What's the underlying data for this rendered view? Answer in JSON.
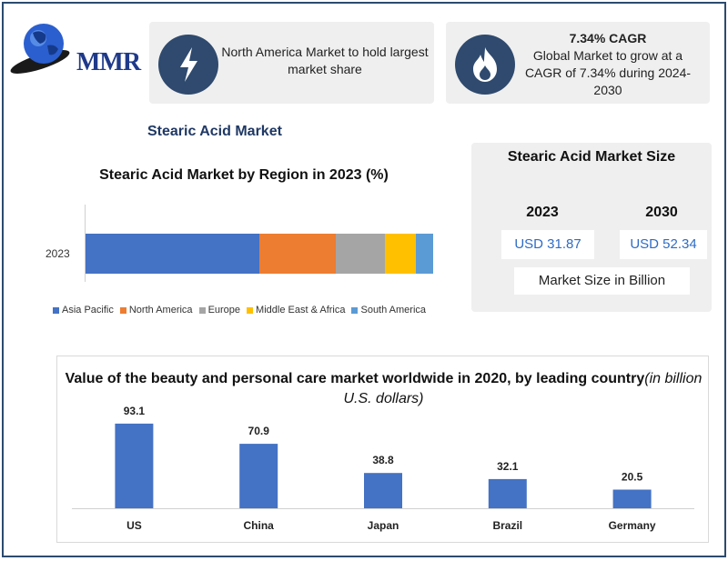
{
  "logo": {
    "text": "MMR",
    "icon": "globe-icon"
  },
  "cards": {
    "regional": {
      "icon": "lightning-icon",
      "text": "North America Market to hold largest market share"
    },
    "cagr": {
      "icon": "flame-icon",
      "title": "7.34% CAGR",
      "text": "Global Market to grow at a CAGR of 7.34% during 2024-2030"
    }
  },
  "section_title": "Stearic Acid Market",
  "market_size": {
    "title": "Stearic Acid Market Size",
    "years": [
      "2023",
      "2030"
    ],
    "values": [
      "USD 31.87",
      "USD 52.34"
    ],
    "note": "Market Size in Billion"
  },
  "colors": {
    "bar_blue": "#4472c4",
    "asia_pacific": "#4472c4",
    "north_america": "#ed7d31",
    "europe": "#a5a5a5",
    "middle_east_africa": "#ffc000",
    "south_america": "#5b9bd5",
    "icon_circle": "#2f4a6e"
  },
  "chart_data": [
    {
      "type": "bar",
      "stacked": true,
      "orientation": "horizontal",
      "title": "Stearic Acid  Market by Region in 2023 (%)",
      "categories": [
        "2023"
      ],
      "series": [
        {
          "name": "Asia Pacific",
          "values": [
            50
          ]
        },
        {
          "name": "North America",
          "values": [
            22
          ]
        },
        {
          "name": "Europe",
          "values": [
            14
          ]
        },
        {
          "name": "Middle East & Africa",
          "values": [
            9
          ]
        },
        {
          "name": "South America",
          "values": [
            5
          ]
        }
      ],
      "xlim": [
        0,
        100
      ],
      "legend": "bottom",
      "grid": false
    },
    {
      "type": "bar",
      "title": "Value of the beauty and personal care market worldwide in 2020, by leading country",
      "subtitle": "(in billion U.S. dollars)",
      "categories": [
        "US",
        "China",
        "Japan",
        "Brazil",
        "Germany"
      ],
      "values": [
        93.1,
        70.9,
        38.8,
        32.1,
        20.5
      ],
      "value_labels": [
        "93.1",
        "70.9",
        "38.8",
        "32.1",
        "20.5"
      ],
      "ylim": [
        0,
        100
      ],
      "grid": false
    }
  ]
}
